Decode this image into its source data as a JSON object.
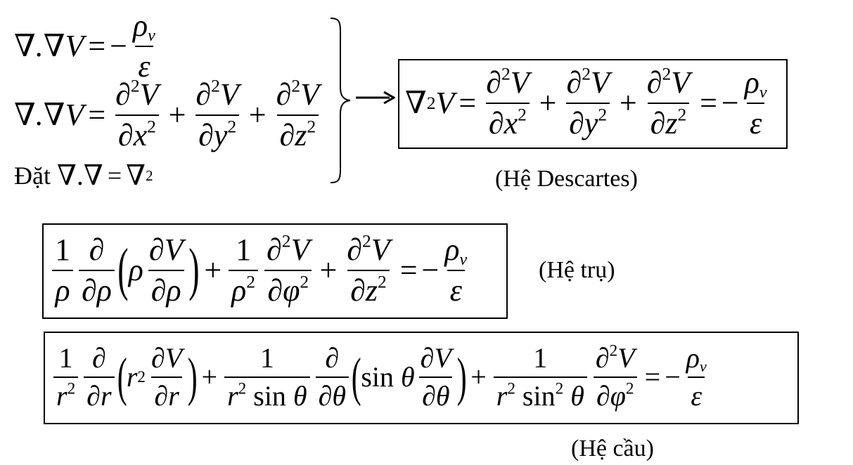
{
  "equations": {
    "line1": {
      "lhs": "∇.∇V",
      "eq": "=",
      "minus": "−",
      "rho": "ρ",
      "v": "v",
      "eps": "ε"
    },
    "line2": {
      "lhs": "∇.∇V",
      "eq": "=",
      "d": "∂",
      "two": "2",
      "V": "V",
      "x": "x",
      "y": "y",
      "z": "z",
      "plus": "+"
    },
    "line3": {
      "text": "Đặt",
      "math": "∇.∇",
      "eq": "=",
      "nabla": "∇",
      "two": "2"
    }
  },
  "descartes": {
    "nabla": "∇",
    "two": "2",
    "V": "V",
    "d": "∂",
    "x": "x",
    "y": "y",
    "z": "z",
    "plus": "+",
    "eq": "=",
    "minus": "−",
    "rho": "ρ",
    "v": "v",
    "eps": "ε",
    "label": "(Hệ Descartes)"
  },
  "cylindrical": {
    "one": "1",
    "rho": "ρ",
    "d": "∂",
    "V": "V",
    "two": "2",
    "phi": "φ",
    "z": "z",
    "plus": "+",
    "eq": "=",
    "minus": "−",
    "v": "v",
    "eps": "ε",
    "label": "(Hệ trụ)"
  },
  "spherical": {
    "one": "1",
    "r": "r",
    "two": "2",
    "d": "∂",
    "V": "V",
    "sin": "sin",
    "theta": "θ",
    "phi": "φ",
    "plus": "+",
    "eq": "=",
    "minus": "−",
    "rho": "ρ",
    "v": "v",
    "eps": "ε",
    "label": "(Hệ cầu)"
  }
}
